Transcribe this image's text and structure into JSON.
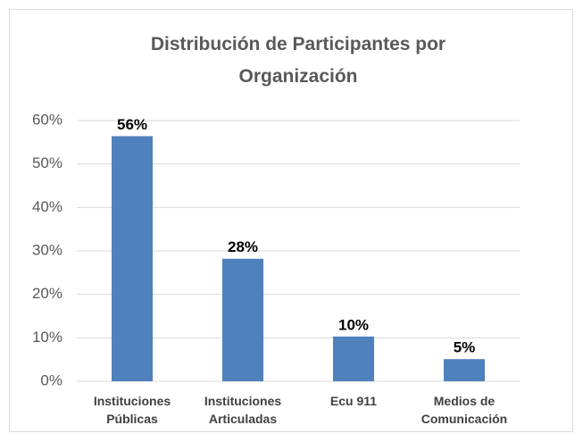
{
  "chart_data": {
    "type": "bar",
    "title": "Distribución de Participantes por Organización",
    "categories": [
      "Instituciones Públicas",
      "Instituciones Articuladas",
      "Ecu 911",
      "Medios de Comunicación"
    ],
    "values": [
      56.4,
      28.2,
      10.3,
      5.1
    ],
    "value_labels": [
      "56%",
      "28%",
      "10%",
      "5%"
    ],
    "color": "#4f81bd",
    "ylim": [
      0,
      60
    ],
    "yticks": [
      {
        "value": 0,
        "label": "0%"
      },
      {
        "value": 10,
        "label": "10%"
      },
      {
        "value": 20,
        "label": "20%"
      },
      {
        "value": 30,
        "label": "30%"
      },
      {
        "value": 40,
        "label": "40%"
      },
      {
        "value": 50,
        "label": "50%"
      },
      {
        "value": 60,
        "label": "60%"
      }
    ],
    "grid": true
  }
}
